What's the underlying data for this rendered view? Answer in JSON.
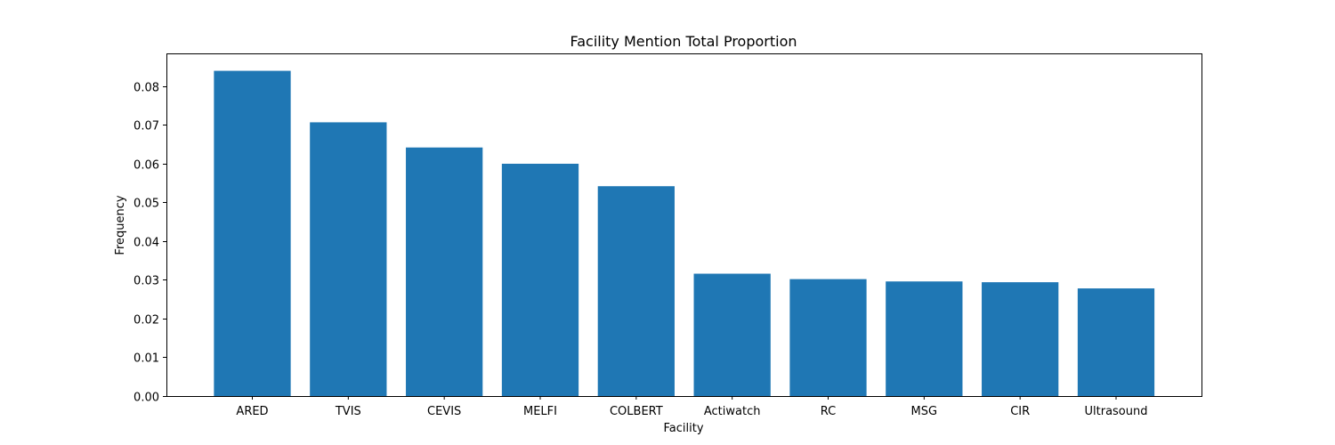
{
  "chart_data": {
    "type": "bar",
    "title": "Facility Mention Total Proportion",
    "xlabel": "Facility",
    "ylabel": "Frequency",
    "categories": [
      "ARED",
      "TVIS",
      "CEVIS",
      "MELFI",
      "COLBERT",
      "Actiwatch",
      "RC",
      "MSG",
      "CIR",
      "Ultrasound"
    ],
    "values": [
      0.084,
      0.0707,
      0.0642,
      0.06,
      0.0542,
      0.0316,
      0.0302,
      0.0296,
      0.0294,
      0.0278
    ],
    "ylim": [
      0,
      0.0885
    ],
    "yticks": [
      0.0,
      0.01,
      0.02,
      0.03,
      0.04,
      0.05,
      0.06,
      0.07,
      0.08
    ],
    "ytick_labels": [
      "0.00",
      "0.01",
      "0.02",
      "0.03",
      "0.04",
      "0.05",
      "0.06",
      "0.07",
      "0.08"
    ],
    "grid": false,
    "colors": {
      "bar": "#1f77b4",
      "axis": "#000000",
      "background": "#ffffff"
    }
  }
}
